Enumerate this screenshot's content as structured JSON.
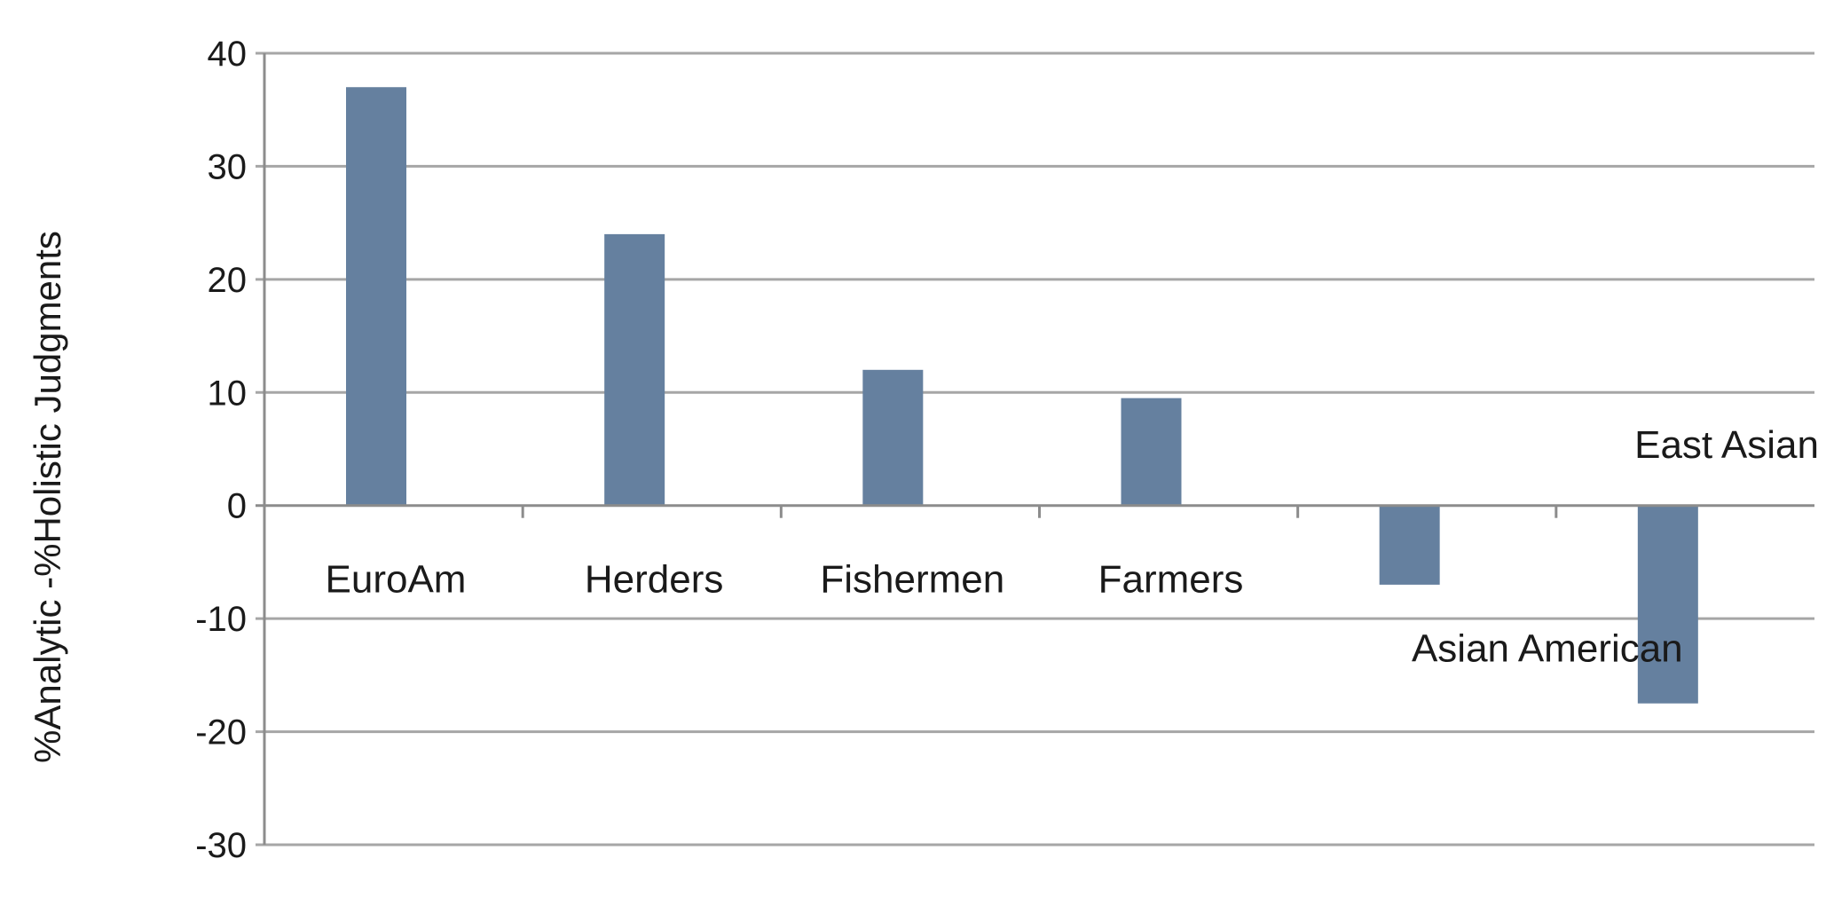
{
  "chart_data": {
    "type": "bar",
    "title": "",
    "xlabel": "",
    "ylabel": "%Analytic -%Holistic Judgments",
    "categories": [
      "EuroAm",
      "Herders",
      "Fishermen",
      "Farmers",
      "Asian American",
      "East Asian"
    ],
    "values": [
      37,
      24,
      12,
      9.5,
      -7,
      -17.5
    ],
    "ylim": [
      -30,
      40
    ],
    "yticks": [
      40,
      30,
      20,
      10,
      0,
      -10,
      -20,
      -30
    ],
    "grid": true,
    "legend": "none",
    "bar_color": "#65809f"
  }
}
